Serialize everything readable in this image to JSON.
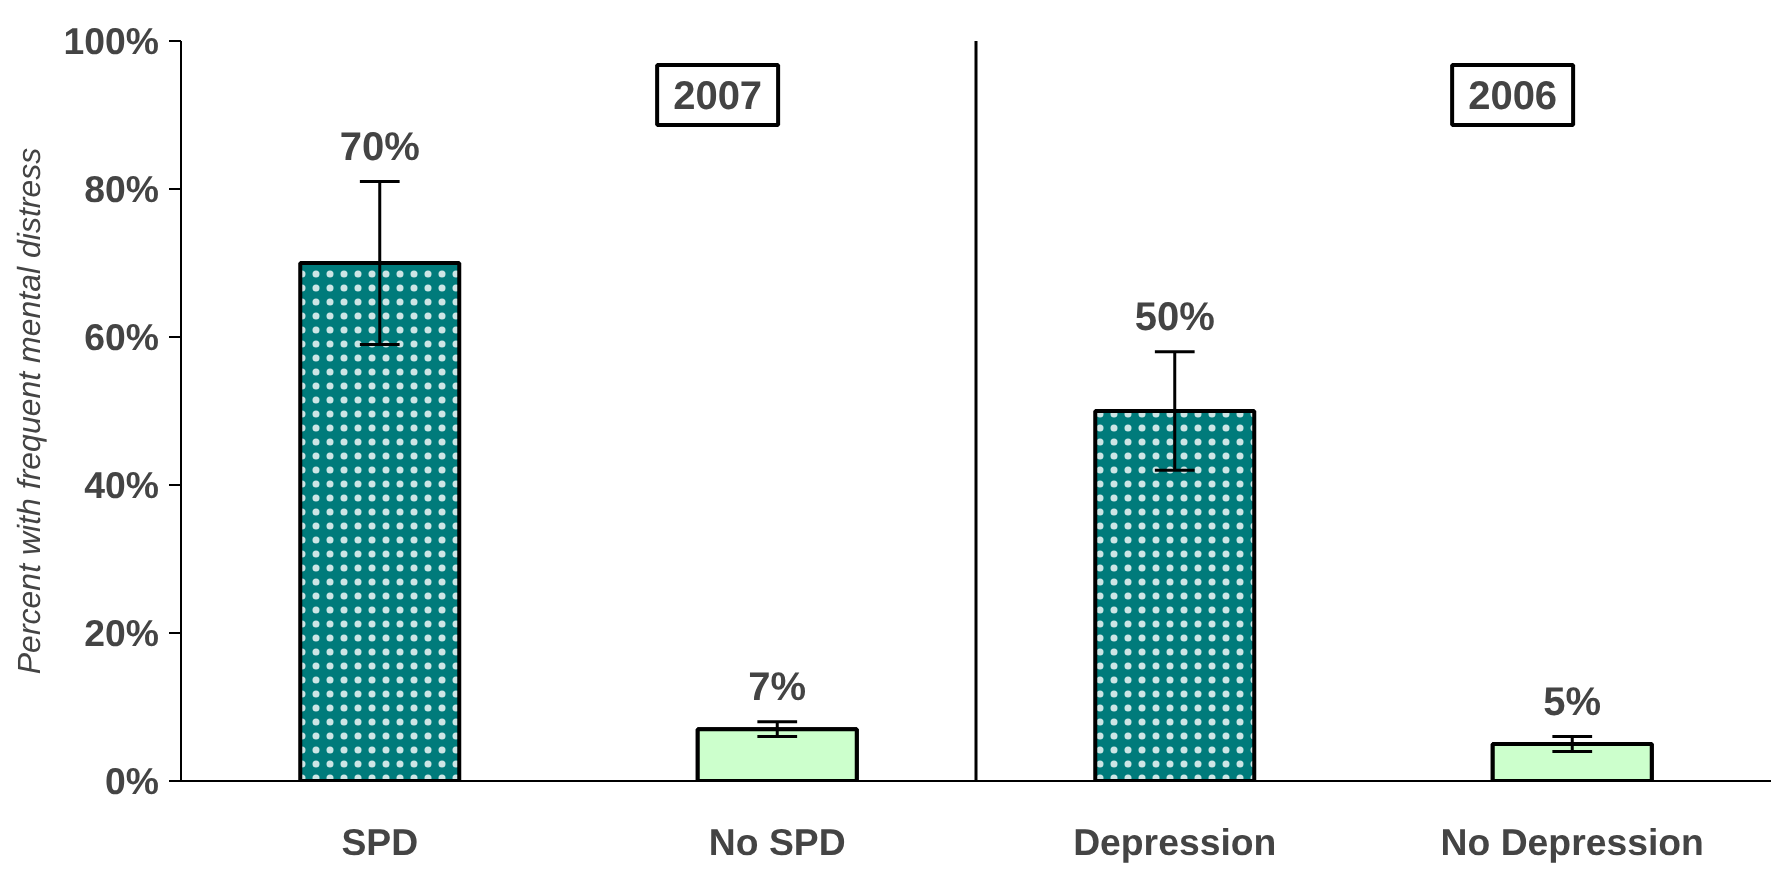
{
  "chart_data": {
    "type": "bar",
    "ylabel": "Percent with frequent mental distress",
    "categories": [
      "SPD",
      "No SPD",
      "Depression",
      "No Depression"
    ],
    "values": [
      70,
      7,
      50,
      5
    ],
    "colors": [
      "#007b7b",
      "#ccffcc",
      "#007b7b",
      "#ccffcc"
    ],
    "errors": [
      [
        59,
        81
      ],
      [
        6,
        8
      ],
      [
        42,
        58
      ],
      [
        4,
        6
      ]
    ],
    "value_labels": [
      "70%",
      "7%",
      "50%",
      "5%"
    ],
    "ylim": [
      0,
      100
    ],
    "yticks": [
      {
        "value": 0,
        "label": "0%"
      },
      {
        "value": 20,
        "label": "20%"
      },
      {
        "value": 40,
        "label": "40%"
      },
      {
        "value": 60,
        "label": "60%"
      },
      {
        "value": 80,
        "label": "80%"
      },
      {
        "value": 100,
        "label": "100%"
      }
    ],
    "annotations": [
      "2007",
      "2006"
    ],
    "grid": false
  }
}
